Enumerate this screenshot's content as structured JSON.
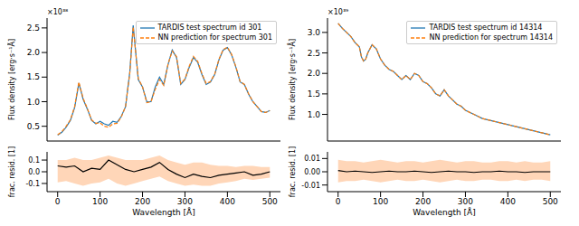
{
  "chart_data": [
    {
      "type": "line",
      "ylabel": "Flux density [erg·s⁻¹Å]",
      "annotations": [
        "×10³⁸"
      ],
      "x": [
        0,
        10,
        20,
        30,
        40,
        50,
        60,
        70,
        80,
        90,
        100,
        110,
        120,
        130,
        140,
        150,
        160,
        170,
        178,
        190,
        200,
        210,
        220,
        230,
        240,
        250,
        260,
        270,
        280,
        290,
        300,
        310,
        320,
        330,
        340,
        350,
        360,
        370,
        380,
        390,
        400,
        410,
        420,
        430,
        440,
        450,
        460,
        470,
        480,
        490,
        500
      ],
      "series": [
        {
          "name": "TARDIS test spectrum id 301",
          "color": "#1f77b4",
          "line_style": "solid",
          "values": [
            0.32,
            0.38,
            0.48,
            0.62,
            0.88,
            1.38,
            1.05,
            0.85,
            0.62,
            0.55,
            0.6,
            0.55,
            0.52,
            0.6,
            0.58,
            0.7,
            0.9,
            1.6,
            2.55,
            1.45,
            1.3,
            1.0,
            1.0,
            1.3,
            1.5,
            1.35,
            1.75,
            2.05,
            1.9,
            1.35,
            1.45,
            1.7,
            1.9,
            1.8,
            1.55,
            1.35,
            1.4,
            1.55,
            1.85,
            2.05,
            2.1,
            1.95,
            1.7,
            1.4,
            1.35,
            1.15,
            1.0,
            0.9,
            0.8,
            0.78,
            0.82
          ]
        },
        {
          "name": "NN prediction for spectrum 301",
          "color": "#ff7f0e",
          "line_style": "dashed",
          "values": [
            0.33,
            0.39,
            0.5,
            0.63,
            0.9,
            1.4,
            1.07,
            0.86,
            0.63,
            0.56,
            0.57,
            0.5,
            0.48,
            0.55,
            0.56,
            0.69,
            0.9,
            1.58,
            2.52,
            1.47,
            1.3,
            0.98,
            1.0,
            1.25,
            1.45,
            1.33,
            1.76,
            2.03,
            1.92,
            1.37,
            1.46,
            1.72,
            1.92,
            1.82,
            1.57,
            1.37,
            1.41,
            1.56,
            1.86,
            2.06,
            2.11,
            1.96,
            1.71,
            1.41,
            1.35,
            1.16,
            1.0,
            0.9,
            0.8,
            0.78,
            0.82
          ]
        }
      ],
      "xlim": [
        -25,
        525
      ],
      "xticks": [
        0,
        100,
        200,
        300,
        400,
        500
      ],
      "ylim": [
        0.2,
        2.7
      ],
      "yticks": [
        0.5,
        {
          "value": 1,
          "label": "1.0"
        },
        1.5,
        {
          "value": 2,
          "label": "2.0"
        },
        2.5
      ],
      "tick_labels": "y",
      "legend": "upper right"
    },
    {
      "type": "line",
      "xlabel": "Wavelength [Å]",
      "ylabel": "frac. resid. [1]",
      "x": [
        0,
        20,
        40,
        60,
        80,
        100,
        120,
        140,
        160,
        180,
        200,
        220,
        240,
        260,
        280,
        300,
        320,
        340,
        360,
        380,
        400,
        420,
        440,
        460,
        480,
        500
      ],
      "values": [
        0.05,
        0.04,
        0.05,
        0,
        0.03,
        0.02,
        0.1,
        0.06,
        0.02,
        0,
        0.02,
        0.04,
        0.08,
        0.02,
        -0.02,
        -0.05,
        -0.02,
        -0.04,
        -0.05,
        -0.03,
        -0.02,
        -0.01,
        0,
        -0.03,
        -0.02,
        0
      ],
      "color": "#000000",
      "band": {
        "color": "#ffd6b8",
        "lower": [
          -0.09,
          -0.08,
          -0.1,
          -0.12,
          -0.1,
          -0.09,
          -0.06,
          -0.1,
          -0.12,
          -0.1,
          -0.08,
          -0.06,
          -0.04,
          -0.08,
          -0.1,
          -0.12,
          -0.11,
          -0.12,
          -0.12,
          -0.1,
          -0.09,
          -0.08,
          -0.06,
          -0.07,
          -0.06,
          -0.05
        ],
        "upper": [
          0.1,
          0.1,
          0.12,
          0.1,
          0.1,
          0.12,
          0.14,
          0.12,
          0.1,
          0.1,
          0.1,
          0.12,
          0.14,
          0.1,
          0.08,
          0.06,
          0.08,
          0.08,
          0.06,
          0.05,
          0.05,
          0.04,
          0.05,
          0.05,
          0.04,
          0.04
        ]
      },
      "xlim": [
        -25,
        525
      ],
      "xticks": [
        0,
        100,
        200,
        300,
        400,
        500
      ],
      "ylim": [
        -0.17,
        0.17
      ],
      "yticks": [
        -0.1,
        {
          "value": 0,
          "label": "0.0"
        },
        0.1
      ]
    },
    {
      "type": "line",
      "ylabel": "Flux density [erg·s⁻¹Å]",
      "annotations": [
        "×10³⁹"
      ],
      "x": [
        0,
        10,
        20,
        30,
        40,
        50,
        55,
        60,
        65,
        70,
        80,
        90,
        100,
        110,
        120,
        130,
        140,
        150,
        160,
        170,
        180,
        190,
        200,
        210,
        220,
        230,
        240,
        250,
        260,
        270,
        280,
        290,
        300,
        320,
        340,
        360,
        380,
        400,
        420,
        440,
        460,
        480,
        500
      ],
      "series": [
        {
          "name": "TARDIS test spectrum id 14314",
          "color": "#1f77b4",
          "line_style": "solid",
          "values": [
            3.22,
            3.1,
            3.0,
            2.9,
            2.75,
            2.65,
            2.4,
            2.3,
            2.35,
            2.5,
            2.7,
            2.6,
            2.35,
            2.2,
            2.1,
            2.05,
            1.95,
            1.85,
            1.95,
            1.85,
            2.0,
            1.95,
            1.8,
            1.75,
            1.65,
            1.5,
            1.45,
            1.6,
            1.45,
            1.35,
            1.25,
            1.2,
            1.1,
            1.0,
            0.9,
            0.85,
            0.8,
            0.75,
            0.7,
            0.65,
            0.6,
            0.55,
            0.5
          ]
        },
        {
          "name": "NN prediction for spectrum 14314",
          "color": "#ff7f0e",
          "line_style": "dashed",
          "values": [
            3.22,
            3.1,
            3.0,
            2.9,
            2.75,
            2.65,
            2.4,
            2.3,
            2.35,
            2.5,
            2.7,
            2.6,
            2.35,
            2.2,
            2.1,
            2.05,
            1.95,
            1.85,
            1.95,
            1.85,
            2.0,
            1.95,
            1.8,
            1.75,
            1.65,
            1.5,
            1.45,
            1.6,
            1.45,
            1.35,
            1.25,
            1.2,
            1.1,
            1.0,
            0.9,
            0.85,
            0.8,
            0.75,
            0.7,
            0.65,
            0.6,
            0.55,
            0.5
          ]
        }
      ],
      "xlim": [
        -25,
        525
      ],
      "xticks": [
        0,
        100,
        200,
        300,
        400,
        500
      ],
      "ylim": [
        0.35,
        3.35
      ],
      "yticks": [
        {
          "value": 1,
          "label": "1.0"
        },
        1.5,
        {
          "value": 2,
          "label": "2.0"
        },
        2.5,
        {
          "value": 3,
          "label": "3.0"
        }
      ],
      "tick_labels": "y",
      "legend": "upper right"
    },
    {
      "type": "line",
      "xlabel": "Wavelength [Å]",
      "ylabel": "frac. resid. [1]",
      "x": [
        0,
        20,
        40,
        60,
        80,
        100,
        120,
        140,
        160,
        180,
        200,
        220,
        240,
        260,
        280,
        300,
        320,
        340,
        360,
        380,
        400,
        420,
        440,
        460,
        480,
        500
      ],
      "values": [
        0.001,
        0,
        0.0005,
        0,
        -0.0005,
        0,
        0.0005,
        0,
        0,
        0.0005,
        0,
        -0.0005,
        0,
        0.0005,
        0,
        0,
        -0.0005,
        0,
        0,
        0.0005,
        0,
        0,
        -0.0005,
        0,
        0,
        0
      ],
      "color": "#000000",
      "band": {
        "color": "#ffd6b8",
        "lower": [
          -0.008,
          -0.007,
          -0.007,
          -0.006,
          -0.007,
          -0.008,
          -0.007,
          -0.006,
          -0.007,
          -0.007,
          -0.006,
          -0.007,
          -0.008,
          -0.007,
          -0.006,
          -0.007,
          -0.007,
          -0.006,
          -0.006,
          -0.007,
          -0.007,
          -0.006,
          -0.007,
          -0.006,
          -0.006,
          -0.007
        ],
        "upper": [
          0.009,
          0.008,
          0.008,
          0.007,
          0.008,
          0.009,
          0.008,
          0.007,
          0.008,
          0.008,
          0.007,
          0.008,
          0.009,
          0.008,
          0.007,
          0.008,
          0.008,
          0.007,
          0.007,
          0.008,
          0.008,
          0.007,
          0.008,
          0.007,
          0.007,
          0.008
        ]
      },
      "xlim": [
        -25,
        525
      ],
      "xticks": [
        0,
        100,
        200,
        300,
        400,
        500
      ],
      "ylim": [
        -0.015,
        0.015
      ],
      "yticks": [
        -0.01,
        {
          "value": 0,
          "label": "0.00"
        },
        0.01
      ]
    }
  ]
}
